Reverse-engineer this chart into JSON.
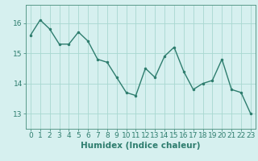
{
  "title": "",
  "xlabel": "Humidex (Indice chaleur)",
  "ylabel": "",
  "x": [
    0,
    1,
    2,
    3,
    4,
    5,
    6,
    7,
    8,
    9,
    10,
    11,
    12,
    13,
    14,
    15,
    16,
    17,
    18,
    19,
    20,
    21,
    22,
    23
  ],
  "y": [
    15.6,
    16.1,
    15.8,
    15.3,
    15.3,
    15.7,
    15.4,
    14.8,
    14.7,
    14.2,
    13.7,
    13.6,
    14.5,
    14.2,
    14.9,
    15.2,
    14.4,
    13.8,
    14.0,
    14.1,
    14.8,
    13.8,
    13.7,
    13.0
  ],
  "line_color": "#2e7d6e",
  "marker": ".",
  "marker_size": 3,
  "bg_color": "#d6f0ef",
  "grid_color": "#a8d8d0",
  "axis_color": "#5a9a8a",
  "tick_color": "#2e7d6e",
  "label_color": "#2e7d6e",
  "yticks": [
    13,
    14,
    15,
    16
  ],
  "ylim": [
    12.5,
    16.6
  ],
  "xlim": [
    -0.5,
    23.5
  ],
  "font_size": 6.5,
  "xlabel_fontsize": 7.5,
  "linewidth": 1.0
}
